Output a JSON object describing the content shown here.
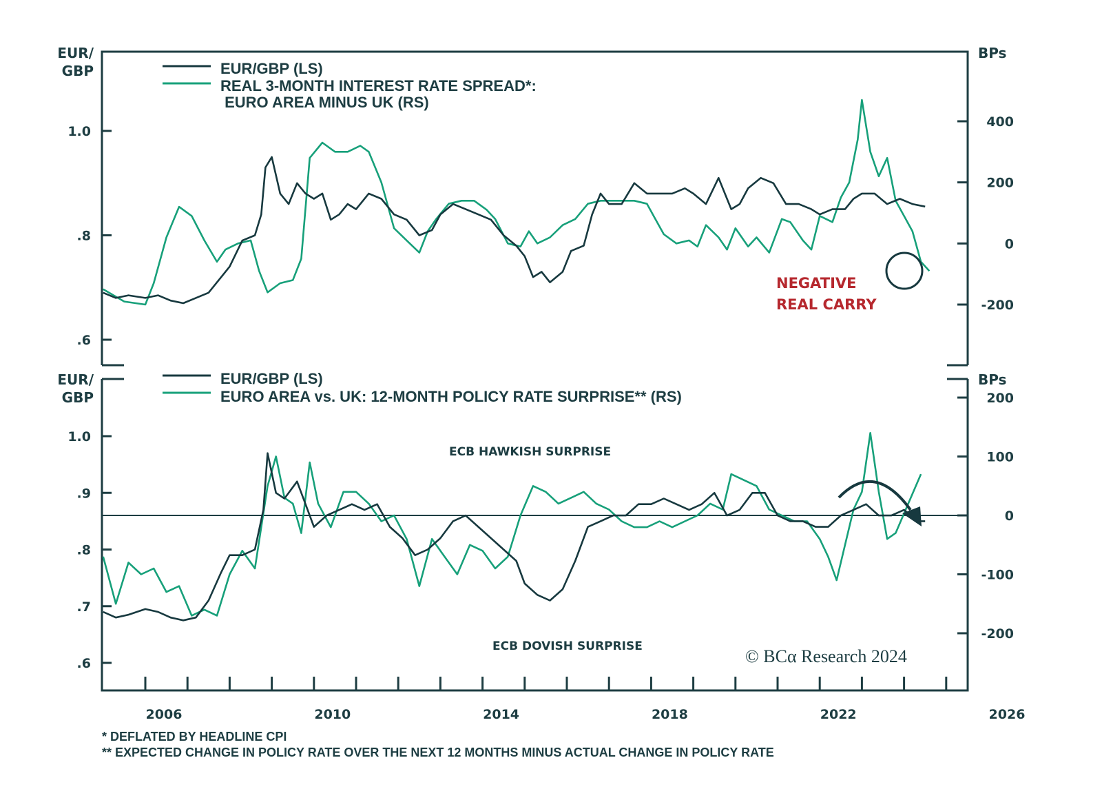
{
  "chart_data": [
    {
      "type": "line",
      "panel": "top",
      "ylabel_left": "EUR/\nGBP",
      "ylabel_left_lines": [
        "EUR/",
        "GBP"
      ],
      "ylabel_right": "BPs",
      "ylim_left": [
        0.57,
        1.15
      ],
      "ylim_right": [
        -400,
        620
      ],
      "yticks_left": [
        {
          "v": 1.0,
          "label": "1.0"
        },
        {
          "v": 0.8,
          "label": ".8"
        },
        {
          "v": 0.6,
          "label": ".6"
        }
      ],
      "yticks_right": [
        {
          "v": 400,
          "label": "400"
        },
        {
          "v": 200,
          "label": "200"
        },
        {
          "v": 0,
          "label": "0"
        },
        {
          "v": -200,
          "label": "-200"
        }
      ],
      "legend": [
        {
          "label": "EUR/GBP (LS)",
          "color": "#17393f"
        },
        {
          "label": "REAL 3-MONTH INTEREST RATE SPREAD*:",
          "color": "#17a07a"
        },
        {
          "label": " EURO AREA MINUS UK (RS)",
          "color": null
        }
      ],
      "annotations": [
        {
          "text": "NEGATIVE",
          "color": "#b6282e"
        },
        {
          "text": "REAL CARRY",
          "color": "#b6282e"
        }
      ],
      "series": [
        {
          "name": "EUR/GBP (LS)",
          "axis": "left",
          "color": "#17393f",
          "x": [
            2005.0,
            2005.3,
            2005.6,
            2006.0,
            2006.3,
            2006.6,
            2006.9,
            2007.2,
            2007.5,
            2007.8,
            2008.0,
            2008.3,
            2008.6,
            2008.75,
            2008.85,
            2009.0,
            2009.2,
            2009.4,
            2009.6,
            2009.8,
            2010.0,
            2010.2,
            2010.4,
            2010.6,
            2010.8,
            2011.0,
            2011.3,
            2011.6,
            2011.9,
            2012.2,
            2012.5,
            2012.8,
            2013.0,
            2013.3,
            2013.6,
            2013.9,
            2014.2,
            2014.5,
            2014.8,
            2015.0,
            2015.2,
            2015.4,
            2015.6,
            2015.9,
            2016.1,
            2016.4,
            2016.6,
            2016.8,
            2017.0,
            2017.3,
            2017.6,
            2017.9,
            2018.2,
            2018.5,
            2018.8,
            2019.0,
            2019.3,
            2019.6,
            2019.9,
            2020.1,
            2020.3,
            2020.6,
            2020.9,
            2021.2,
            2021.5,
            2021.8,
            2022.0,
            2022.3,
            2022.6,
            2022.8,
            2023.0,
            2023.3,
            2023.6,
            2023.9,
            2024.2,
            2024.5
          ],
          "y": [
            0.69,
            0.68,
            0.685,
            0.68,
            0.685,
            0.675,
            0.67,
            0.68,
            0.69,
            0.72,
            0.74,
            0.79,
            0.8,
            0.84,
            0.93,
            0.95,
            0.88,
            0.86,
            0.9,
            0.88,
            0.87,
            0.88,
            0.83,
            0.84,
            0.86,
            0.85,
            0.88,
            0.87,
            0.84,
            0.83,
            0.8,
            0.81,
            0.84,
            0.86,
            0.85,
            0.84,
            0.83,
            0.8,
            0.78,
            0.76,
            0.72,
            0.73,
            0.71,
            0.73,
            0.77,
            0.78,
            0.84,
            0.88,
            0.86,
            0.86,
            0.9,
            0.88,
            0.88,
            0.88,
            0.89,
            0.88,
            0.86,
            0.91,
            0.85,
            0.86,
            0.89,
            0.91,
            0.9,
            0.86,
            0.86,
            0.85,
            0.84,
            0.85,
            0.85,
            0.87,
            0.88,
            0.88,
            0.86,
            0.87,
            0.86,
            0.855
          ]
        },
        {
          "name": "Real 3-month interest rate spread: Euro area minus UK (RS)",
          "axis": "right",
          "color": "#17a07a",
          "x": [
            2005.0,
            2005.5,
            2006.0,
            2006.2,
            2006.5,
            2006.8,
            2007.1,
            2007.4,
            2007.7,
            2007.9,
            2008.2,
            2008.5,
            2008.7,
            2008.9,
            2009.2,
            2009.5,
            2009.7,
            2009.9,
            2010.2,
            2010.5,
            2010.8,
            2011.1,
            2011.3,
            2011.6,
            2011.9,
            2012.2,
            2012.5,
            2012.7,
            2012.9,
            2013.2,
            2013.5,
            2013.8,
            2014.1,
            2014.3,
            2014.6,
            2014.9,
            2015.1,
            2015.3,
            2015.6,
            2015.9,
            2016.2,
            2016.5,
            2016.8,
            2017.1,
            2017.3,
            2017.6,
            2017.9,
            2018.1,
            2018.3,
            2018.6,
            2018.9,
            2019.1,
            2019.3,
            2019.6,
            2019.8,
            2020.0,
            2020.3,
            2020.5,
            2020.8,
            2021.1,
            2021.3,
            2021.6,
            2021.8,
            2022.0,
            2022.3,
            2022.5,
            2022.7,
            2022.9,
            2023.0,
            2023.2,
            2023.4,
            2023.6,
            2023.8,
            2024.0,
            2024.2,
            2024.4,
            2024.6
          ],
          "y": [
            -150,
            -190,
            -200,
            -130,
            20,
            120,
            90,
            10,
            -60,
            -20,
            0,
            10,
            -90,
            -160,
            -130,
            -120,
            -50,
            280,
            330,
            300,
            300,
            320,
            300,
            200,
            50,
            10,
            -30,
            40,
            80,
            130,
            140,
            140,
            110,
            80,
            0,
            -10,
            40,
            0,
            20,
            60,
            80,
            130,
            140,
            140,
            140,
            140,
            130,
            80,
            30,
            0,
            10,
            -10,
            60,
            20,
            -20,
            50,
            -10,
            20,
            -30,
            80,
            70,
            10,
            -20,
            90,
            70,
            150,
            200,
            340,
            470,
            300,
            220,
            280,
            140,
            90,
            40,
            -60,
            -90
          ]
        }
      ]
    },
    {
      "type": "line",
      "panel": "bottom",
      "ylabel_left_lines": [
        "EUR/",
        "GBP"
      ],
      "ylabel_right": "BPs",
      "ylim_left": [
        0.55,
        1.05
      ],
      "ylim_right": [
        -300,
        220
      ],
      "yticks_left": [
        {
          "v": 1.0,
          "label": "1.0"
        },
        {
          "v": 0.9,
          "label": ".9"
        },
        {
          "v": 0.8,
          "label": ".8"
        },
        {
          "v": 0.7,
          "label": ".7"
        },
        {
          "v": 0.6,
          "label": ".6"
        }
      ],
      "yticks_right": [
        {
          "v": 200,
          "label": "200"
        },
        {
          "v": 100,
          "label": "100"
        },
        {
          "v": 0,
          "label": "0"
        },
        {
          "v": -100,
          "label": "-100"
        },
        {
          "v": -200,
          "label": "-200"
        }
      ],
      "zero_line_right": 0,
      "legend": [
        {
          "label": "EUR/GBP (LS)",
          "color": "#17393f"
        },
        {
          "label": "EURO AREA vs. UK: 12-MONTH POLICY RATE SURPRISE** (RS)",
          "color": "#17a07a"
        }
      ],
      "annotations": [
        {
          "text": "ECB HAWKISH SURPRISE"
        },
        {
          "text": "ECB DOVISH SURPRISE"
        }
      ],
      "series": [
        {
          "name": "EUR/GBP (LS)",
          "axis": "left",
          "color": "#17393f",
          "x": [
            2005.0,
            2005.3,
            2005.6,
            2006.0,
            2006.3,
            2006.6,
            2006.9,
            2007.2,
            2007.5,
            2007.8,
            2008.0,
            2008.3,
            2008.6,
            2008.8,
            2008.9,
            2009.1,
            2009.3,
            2009.6,
            2009.8,
            2010.0,
            2010.3,
            2010.6,
            2010.9,
            2011.2,
            2011.5,
            2011.8,
            2012.1,
            2012.4,
            2012.7,
            2013.0,
            2013.3,
            2013.6,
            2013.9,
            2014.2,
            2014.5,
            2014.8,
            2015.0,
            2015.3,
            2015.6,
            2015.9,
            2016.2,
            2016.5,
            2016.8,
            2017.1,
            2017.4,
            2017.7,
            2018.0,
            2018.3,
            2018.6,
            2018.9,
            2019.2,
            2019.5,
            2019.8,
            2020.1,
            2020.4,
            2020.7,
            2021.0,
            2021.3,
            2021.6,
            2021.9,
            2022.2,
            2022.5,
            2022.8,
            2023.1,
            2023.4,
            2023.7,
            2024.0,
            2024.3,
            2024.5
          ],
          "y": [
            0.69,
            0.68,
            0.685,
            0.695,
            0.69,
            0.68,
            0.675,
            0.68,
            0.71,
            0.76,
            0.79,
            0.79,
            0.8,
            0.87,
            0.97,
            0.9,
            0.89,
            0.92,
            0.88,
            0.84,
            0.86,
            0.87,
            0.88,
            0.87,
            0.88,
            0.84,
            0.82,
            0.79,
            0.8,
            0.82,
            0.85,
            0.86,
            0.84,
            0.82,
            0.8,
            0.78,
            0.74,
            0.72,
            0.71,
            0.73,
            0.78,
            0.84,
            0.85,
            0.86,
            0.86,
            0.88,
            0.88,
            0.89,
            0.88,
            0.87,
            0.88,
            0.9,
            0.86,
            0.87,
            0.9,
            0.9,
            0.86,
            0.85,
            0.85,
            0.84,
            0.84,
            0.86,
            0.87,
            0.88,
            0.86,
            0.86,
            0.87,
            0.85,
            0.85
          ]
        },
        {
          "name": "Euro area vs. UK: 12-month policy rate surprise (RS)",
          "axis": "right",
          "color": "#17a07a",
          "x": [
            2005.0,
            2005.3,
            2005.6,
            2005.9,
            2006.2,
            2006.5,
            2006.8,
            2007.1,
            2007.4,
            2007.7,
            2008.0,
            2008.3,
            2008.6,
            2008.9,
            2009.1,
            2009.3,
            2009.5,
            2009.7,
            2009.9,
            2010.1,
            2010.4,
            2010.7,
            2011.0,
            2011.3,
            2011.6,
            2011.9,
            2012.2,
            2012.5,
            2012.8,
            2013.1,
            2013.4,
            2013.7,
            2014.0,
            2014.3,
            2014.6,
            2014.9,
            2015.2,
            2015.5,
            2015.8,
            2016.1,
            2016.4,
            2016.7,
            2017.0,
            2017.3,
            2017.6,
            2017.9,
            2018.2,
            2018.5,
            2018.8,
            2019.1,
            2019.4,
            2019.7,
            2019.9,
            2020.2,
            2020.5,
            2020.8,
            2021.1,
            2021.4,
            2021.7,
            2022.0,
            2022.2,
            2022.4,
            2022.6,
            2022.8,
            2023.0,
            2023.2,
            2023.4,
            2023.6,
            2023.8,
            2024.1,
            2024.4
          ],
          "y": [
            -70,
            -150,
            -80,
            -100,
            -90,
            -130,
            -120,
            -170,
            -160,
            -170,
            -100,
            -60,
            -90,
            50,
            100,
            30,
            20,
            -30,
            90,
            20,
            -20,
            40,
            40,
            20,
            -10,
            0,
            -40,
            -120,
            -40,
            -70,
            -100,
            -50,
            -60,
            -90,
            -70,
            0,
            50,
            40,
            20,
            30,
            40,
            20,
            10,
            -10,
            -20,
            -20,
            -10,
            -20,
            -10,
            0,
            20,
            10,
            70,
            60,
            50,
            10,
            0,
            -10,
            -10,
            -40,
            -70,
            -110,
            -50,
            10,
            40,
            140,
            40,
            -40,
            -30,
            20,
            70
          ]
        }
      ]
    }
  ],
  "xaxis": {
    "tick_years": [
      2006,
      2007,
      2008,
      2009,
      2010,
      2011,
      2012,
      2013,
      2014,
      2015,
      2016,
      2017,
      2018,
      2019,
      2020,
      2021,
      2022,
      2023,
      2024,
      2025
    ],
    "labels": [
      "2006",
      "2010",
      "2014",
      "2018",
      "2022",
      "2026"
    ],
    "range": [
      2005.0,
      2025.55
    ]
  },
  "footnotes": [
    "* DEFLATED BY HEADLINE CPI",
    "** EXPECTED CHANGE IN POLICY RATE OVER THE NEXT 12 MONTHS MINUS ACTUAL CHANGE IN POLICY RATE"
  ],
  "copyright": "© BCα Research 2024",
  "colors": {
    "dark": "#17393f",
    "green": "#17a07a",
    "red": "#b6282e",
    "axis": "#1d3d42"
  }
}
